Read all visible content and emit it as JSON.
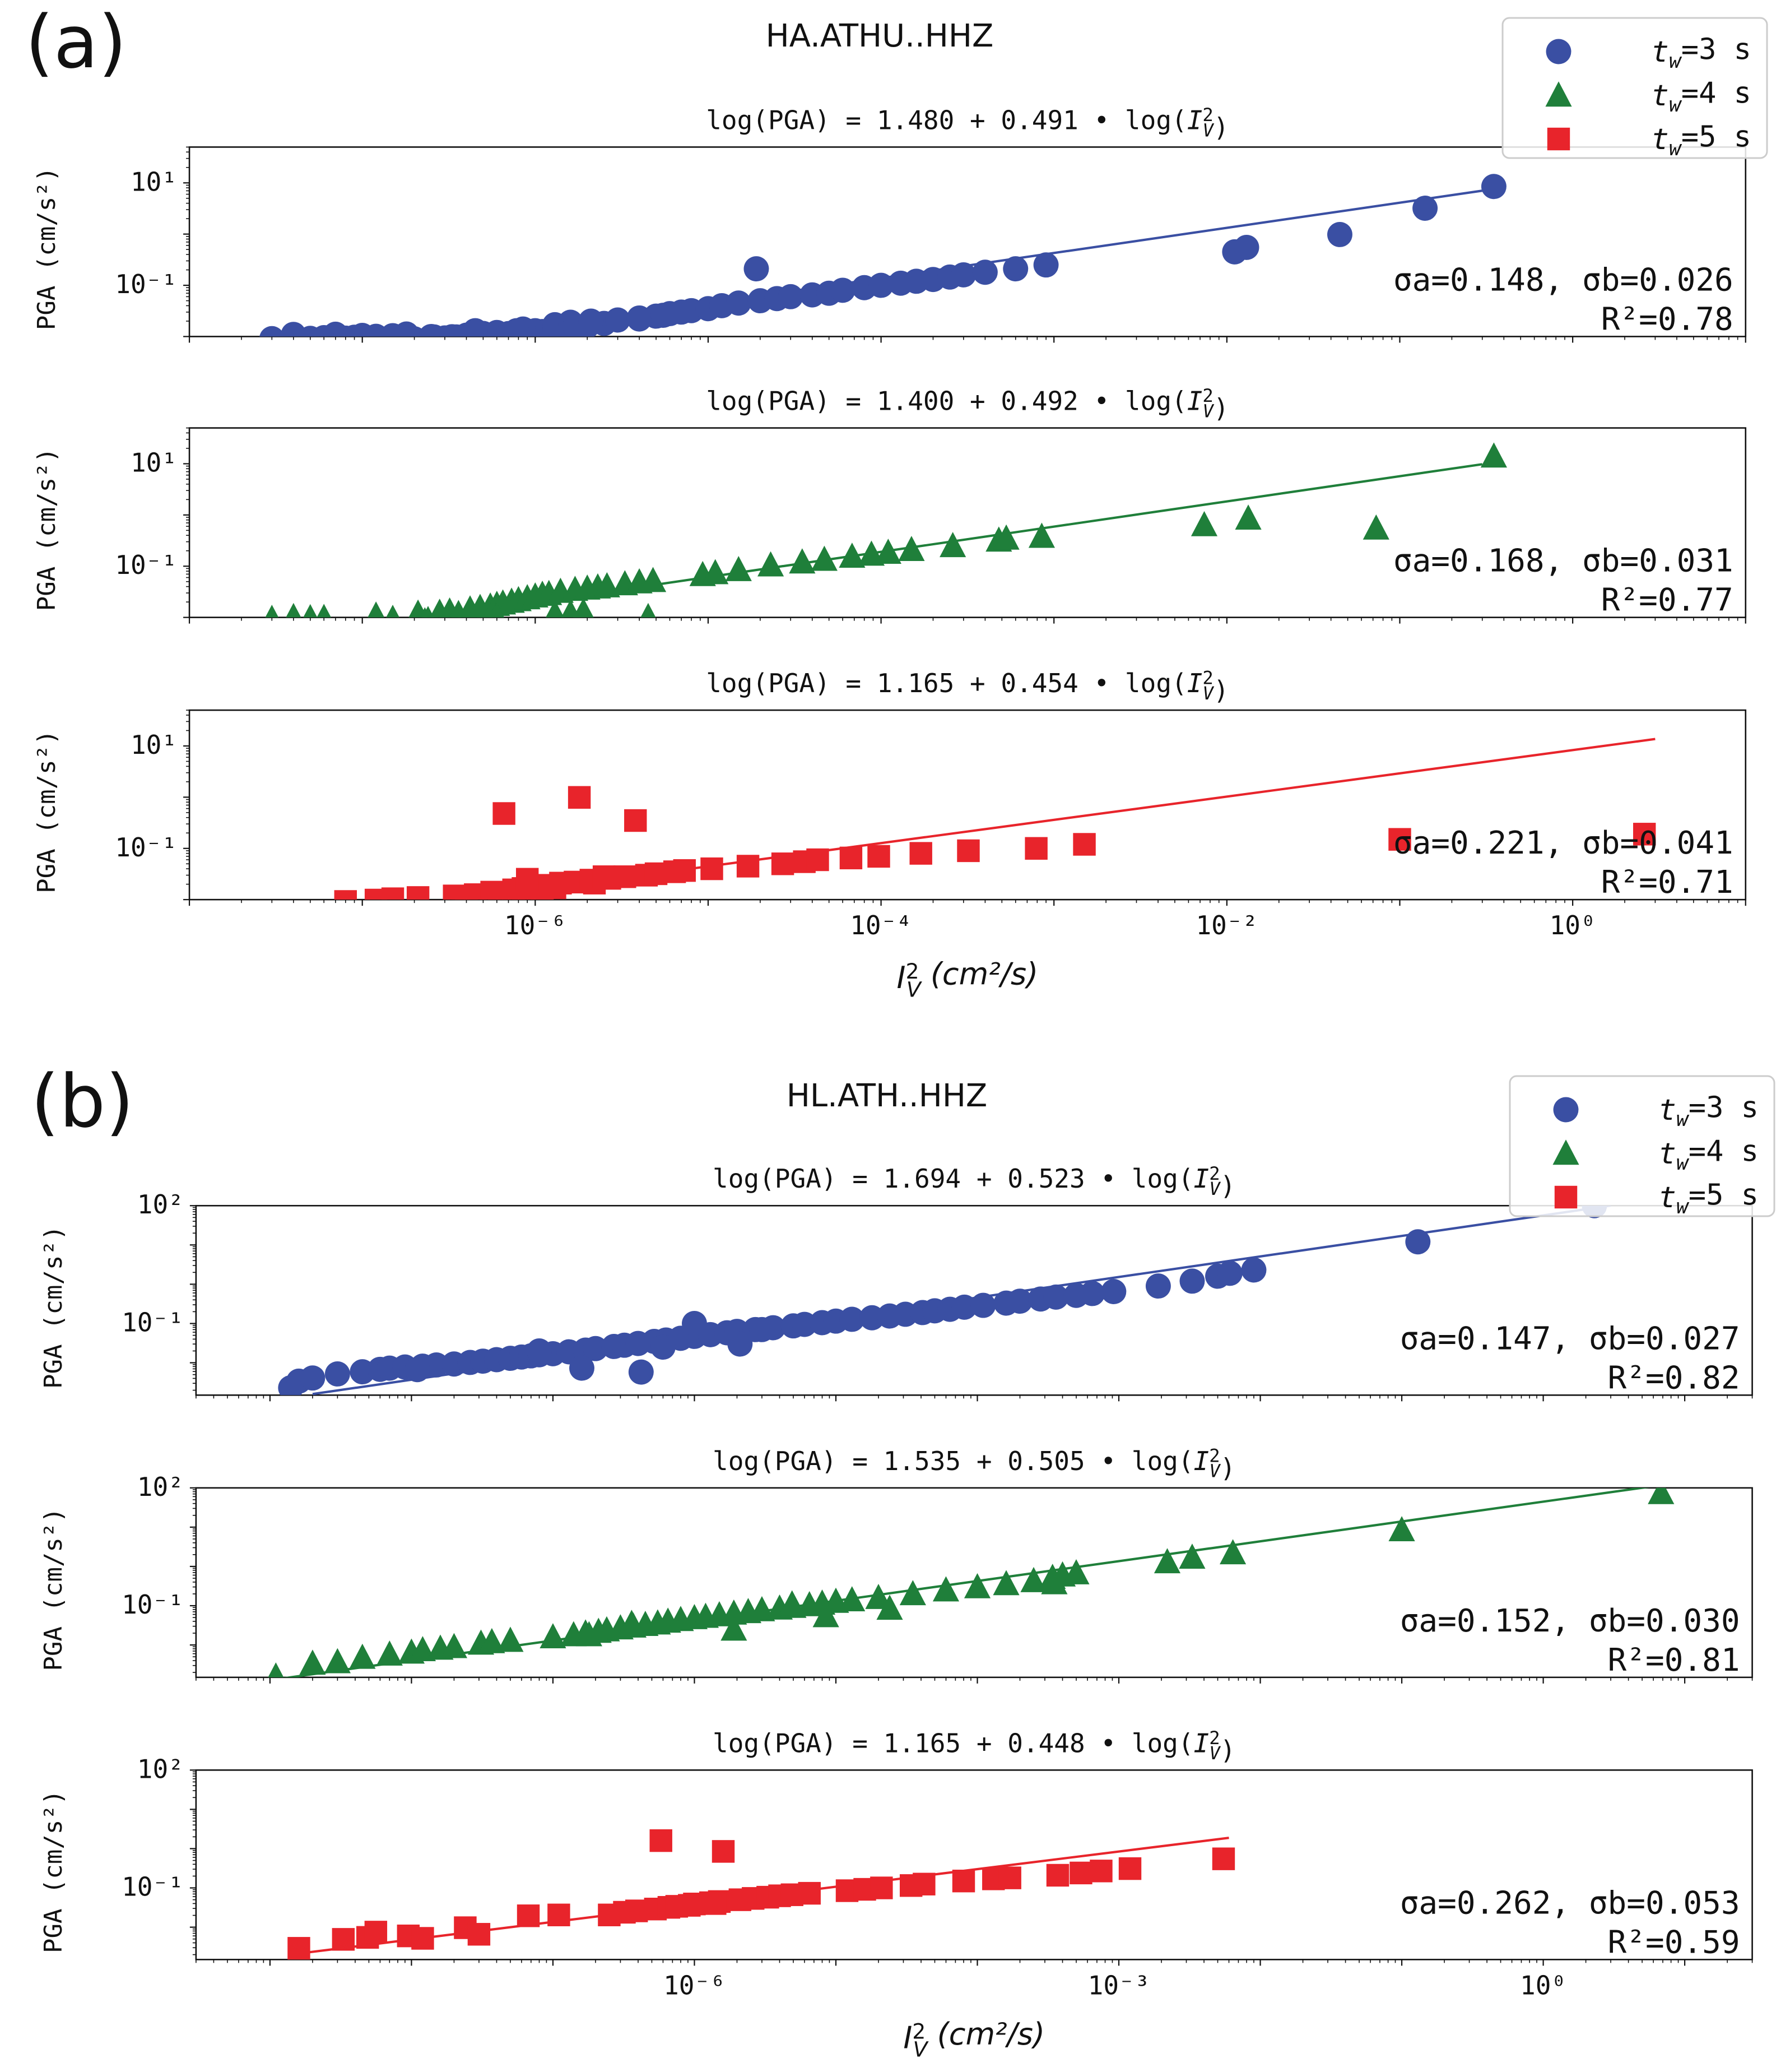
{
  "panel_labels": [
    "(a)",
    "(b)"
  ],
  "legend": [
    {
      "label": "t_w=3  s",
      "marker": "circle",
      "color": "#3a4fa3"
    },
    {
      "label": "t_w=4  s",
      "marker": "triangle",
      "color": "#1f7f3a"
    },
    {
      "label": "t_w=5  s",
      "marker": "square",
      "color": "#e8242b"
    }
  ],
  "colors": {
    "blue": "#3a4fa3",
    "green": "#1f7f3a",
    "red": "#e8242b"
  },
  "chart_data": [
    {
      "type": "scatter",
      "panel": "(a)",
      "title": "HA.ATHU..HHZ",
      "row": 1,
      "equation": "log(PGA)  =  1.480  +  0.491  •  log(I²_V)",
      "sigma": "σa=0.148,  σb=0.026",
      "r2": "R²=0.78",
      "ylabel": "PGA (cm/s²)",
      "xlabel": "",
      "xscale": "log",
      "yscale": "log",
      "xlim": [
        1e-08,
        10
      ],
      "ylim": [
        0.01,
        50
      ],
      "yticks": [
        "10¹",
        "10⁻¹"
      ],
      "xticks": [],
      "fit": {
        "a": 1.48,
        "b": 0.491,
        "x": [
          3e-08,
          0.3
        ]
      },
      "series": [
        {
          "name": "t_w=3  s",
          "marker": "circle",
          "color": "#3a4fa3",
          "x": [
            3e-08,
            4e-08,
            5e-08,
            6e-08,
            7e-08,
            8e-08,
            9e-08,
            1e-07,
            1.2e-07,
            1.5e-07,
            1.8e-07,
            2e-07,
            2.5e-07,
            3e-07,
            3.5e-07,
            4e-07,
            4e-07,
            5e-07,
            6e-07,
            6e-07,
            7e-07,
            8e-07,
            9e-07,
            1e-06,
            1.1e-06,
            1.3e-06,
            1.5e-06,
            1.8e-06,
            2e-06,
            2.5e-06,
            3e-06,
            4e-06,
            5e-06,
            6e-06,
            7e-06,
            8e-06,
            1e-05,
            1.2e-05,
            1.5e-05,
            2e-05,
            2.5e-05,
            3e-05,
            4e-05,
            5e-05,
            6e-05,
            8e-05,
            0.0001,
            0.00013,
            0.00016,
            0.0002,
            0.00025,
            0.0003,
            0.0004,
            0.0006,
            0.0009,
            0.0111,
            0.013,
            0.045,
            0.14,
            0.35,
            1.3e-06,
            4.5e-07,
            1.6e-06,
            1.9e-05,
            2.6e-07,
            1.7e-06,
            8.5e-07,
            7.8e-07,
            3.3e-07,
            2.1e-06,
            4e-06,
            5.5e-06
          ],
          "y": [
            0.0091,
            0.011,
            0.0092,
            0.0095,
            0.0111,
            0.0093,
            0.0097,
            0.0105,
            0.0101,
            0.0104,
            0.0112,
            0.009,
            0.01,
            0.0094,
            0.0098,
            0.0096,
            0.0106,
            0.0115,
            0.0108,
            0.012,
            0.0114,
            0.0118,
            0.012,
            0.013,
            0.0125,
            0.0135,
            0.014,
            0.0148,
            0.016,
            0.018,
            0.021,
            0.023,
            0.025,
            0.028,
            0.03,
            0.032,
            0.035,
            0.04,
            0.045,
            0.05,
            0.055,
            0.06,
            0.065,
            0.07,
            0.08,
            0.09,
            0.1,
            0.11,
            0.12,
            0.13,
            0.145,
            0.16,
            0.18,
            0.21,
            0.25,
            0.45,
            0.55,
            0.98,
            3.2,
            8.5,
            0.017,
            0.013,
            0.019,
            0.21,
            0.0098,
            0.016,
            0.014,
            0.013,
            0.0099,
            0.02,
            0.022,
            0.026
          ]
        }
      ]
    },
    {
      "type": "scatter",
      "panel": "(a)",
      "title": "HA.ATHU..HHZ",
      "row": 2,
      "equation": "log(PGA)  =  1.400  +  0.492  •  log(I²_V)",
      "sigma": "σa=0.168,  σb=0.031",
      "r2": "R²=0.77",
      "ylabel": "PGA (cm/s²)",
      "xlabel": "",
      "xscale": "log",
      "yscale": "log",
      "xlim": [
        1e-08,
        10
      ],
      "ylim": [
        0.01,
        50
      ],
      "yticks": [
        "10¹",
        "10⁻¹"
      ],
      "xticks": [],
      "fit": {
        "a": 1.4,
        "b": 0.492,
        "x": [
          3e-08,
          0.3
        ]
      },
      "series": [
        {
          "name": "t_w=4  s",
          "marker": "triangle",
          "color": "#1f7f3a",
          "x": [
            3e-08,
            4e-08,
            5e-08,
            6e-08,
            1.2e-07,
            1.5e-07,
            2.1e-07,
            2.3e-07,
            2.4e-07,
            2.8e-07,
            3.2e-07,
            3.6e-07,
            4.2e-07,
            4.8e-07,
            5.5e-07,
            6e-07,
            6.5e-07,
            7.3e-07,
            8e-07,
            9e-07,
            1e-06,
            1.1e-06,
            1.2e-06,
            1.4e-06,
            1.7e-06,
            2e-06,
            2.3e-06,
            2.6e-06,
            3.3e-06,
            4e-06,
            4.8e-06,
            9.3e-06,
            1.1e-05,
            1.5e-05,
            2.3e-05,
            3.5e-05,
            4.7e-05,
            6.8e-05,
            8.8e-05,
            0.00011,
            0.00015,
            0.00026,
            0.00048,
            0.00053,
            0.00085,
            0.0074,
            0.0133,
            0.073,
            0.35,
            3.5e-07,
            4.5e-06,
            1.3e-06,
            1.9e-06,
            6e-07,
            1.6e-06
          ],
          "y": [
            0.0095,
            0.0103,
            0.0098,
            0.0099,
            0.011,
            0.0095,
            0.012,
            0.0085,
            0.009,
            0.0125,
            0.0132,
            0.0118,
            0.0145,
            0.0155,
            0.0165,
            0.0178,
            0.019,
            0.0205,
            0.022,
            0.024,
            0.026,
            0.028,
            0.029,
            0.032,
            0.035,
            0.037,
            0.039,
            0.041,
            0.045,
            0.049,
            0.052,
            0.068,
            0.074,
            0.085,
            0.105,
            0.12,
            0.135,
            0.155,
            0.17,
            0.185,
            0.21,
            0.25,
            0.32,
            0.35,
            0.38,
            0.64,
            0.86,
            0.55,
            14,
            0.0081,
            0.0103,
            0.0118,
            0.0129,
            0.0102,
            0.012
          ]
        }
      ]
    },
    {
      "type": "scatter",
      "panel": "(a)",
      "title": "HA.ATHU..HHZ",
      "row": 3,
      "equation": "log(PGA)  =  1.165  +  0.454  •  log(I²_V)",
      "sigma": "σa=0.221,  σb=0.041",
      "r2": "R²=0.71",
      "ylabel": "PGA (cm/s²)",
      "xlabel": "I²_V  (cm²/s)",
      "xscale": "log",
      "yscale": "log",
      "xlim": [
        1e-08,
        10
      ],
      "ylim": [
        0.01,
        50
      ],
      "yticks": [
        "10¹",
        "10⁻¹"
      ],
      "xticks": [
        "10⁻⁶",
        "10⁻⁴",
        "10⁻²",
        "10⁰"
      ],
      "fit": {
        "a": 1.165,
        "b": 0.454,
        "x": [
          6e-08,
          3.0
        ]
      },
      "series": [
        {
          "name": "t_w=5  s",
          "marker": "square",
          "color": "#e8242b",
          "x": [
            8e-08,
            1.2e-07,
            1.5e-07,
            2.1e-07,
            3.4e-07,
            4e-07,
            4.5e-07,
            5.6e-07,
            6.2e-07,
            7.5e-07,
            8.5e-07,
            1e-06,
            1.2e-06,
            1.4e-06,
            1.7e-06,
            2.1e-06,
            2.7e-06,
            3.3e-06,
            4.4e-06,
            5e-06,
            6.4e-06,
            7.3e-06,
            1.05e-05,
            1.7e-05,
            2.7e-05,
            3.6e-05,
            4.3e-05,
            6.7e-05,
            9.7e-05,
            0.00017,
            0.00032,
            0.00079,
            0.0015,
            0.1,
            2.6,
            6.6e-07,
            1.8e-06,
            3.8e-06,
            2.2e-06,
            1.3e-06,
            1.1e-06,
            9e-07,
            2.5e-06
          ],
          "y": [
            0.0092,
            0.0098,
            0.0104,
            0.011,
            0.0118,
            0.0103,
            0.0125,
            0.014,
            0.013,
            0.0155,
            0.0165,
            0.018,
            0.019,
            0.021,
            0.022,
            0.024,
            0.026,
            0.028,
            0.03,
            0.032,
            0.035,
            0.037,
            0.04,
            0.045,
            0.05,
            0.055,
            0.06,
            0.065,
            0.07,
            0.08,
            0.09,
            0.1,
            0.12,
            0.15,
            0.19,
            0.48,
            0.99,
            0.35,
            0.021,
            0.017,
            0.015,
            0.025,
            0.028
          ]
        }
      ]
    },
    {
      "type": "scatter",
      "panel": "(b)",
      "title": "HL.ATH..HHZ",
      "row": 1,
      "equation": "log(PGA)  =  1.694  +  0.523  •  log(I²_V)",
      "sigma": "σa=0.147,  σb=0.027",
      "r2": "R²=0.82",
      "ylabel": "PGA (cm/s²)",
      "xlabel": "",
      "xscale": "log",
      "yscale": "log",
      "xlim": [
        3e-10,
        30
      ],
      "ylim": [
        0.0015,
        100
      ],
      "yticks": [
        "10²",
        "10⁻¹"
      ],
      "xticks": [],
      "fit": {
        "a": 1.694,
        "b": 0.523,
        "x": [
          2e-09,
          3.0
        ]
      },
      "series": [
        {
          "name": "t_w=3  s",
          "marker": "circle",
          "color": "#3a4fa3",
          "x": [
            1.4e-09,
            1.6e-09,
            2e-09,
            3e-09,
            4.5e-09,
            6e-09,
            7e-09,
            9e-09,
            1.2e-08,
            1.5e-08,
            2e-08,
            2.6e-08,
            3.2e-08,
            4e-08,
            5e-08,
            6e-08,
            7e-08,
            8e-08,
            1e-07,
            1.3e-07,
            1.7e-07,
            2e-07,
            2.7e-07,
            3.2e-07,
            4e-07,
            5.2e-07,
            6.3e-07,
            8e-07,
            1e-06,
            1.3e-06,
            1.7e-06,
            2e-06,
            2.7e-06,
            3.6e-06,
            5e-06,
            6e-06,
            8e-06,
            1e-05,
            1.3e-05,
            1.8e-05,
            2.4e-05,
            3.1e-05,
            4.1e-05,
            5e-05,
            6.4e-05,
            8.1e-05,
            0.00011,
            0.00016,
            0.0002,
            0.00028,
            0.00036,
            0.0005,
            0.00065,
            0.00092,
            0.0019,
            0.0033,
            0.005,
            0.0061,
            0.009,
            0.13,
            2.3,
            4.2e-07,
            1.1e-08,
            1.6e-07,
            8e-08,
            6e-07,
            2.1e-06,
            1e-06,
            3e-06
          ],
          "y": [
            0.0023,
            0.0034,
            0.0041,
            0.0052,
            0.0059,
            0.0068,
            0.0073,
            0.0078,
            0.0082,
            0.0088,
            0.0093,
            0.0102,
            0.011,
            0.012,
            0.013,
            0.014,
            0.015,
            0.016,
            0.017,
            0.019,
            0.021,
            0.023,
            0.026,
            0.028,
            0.031,
            0.035,
            0.038,
            0.042,
            0.047,
            0.052,
            0.058,
            0.063,
            0.07,
            0.078,
            0.087,
            0.095,
            0.105,
            0.115,
            0.128,
            0.14,
            0.155,
            0.172,
            0.19,
            0.21,
            0.23,
            0.26,
            0.29,
            0.33,
            0.37,
            0.42,
            0.47,
            0.52,
            0.58,
            0.65,
            0.9,
            1.2,
            1.6,
            1.9,
            2.3,
            12,
            100,
            0.0058,
            0.0067,
            0.0073,
            0.02,
            0.025,
            0.03,
            0.1,
            0.07
          ]
        }
      ]
    },
    {
      "type": "scatter",
      "panel": "(b)",
      "title": "HL.ATH..HHZ",
      "row": 2,
      "equation": "log(PGA)  =  1.535  +  0.505  •  log(I²_V)",
      "sigma": "σa=0.152,  σb=0.030",
      "r2": "R²=0.81",
      "ylabel": "PGA (cm/s²)",
      "xlabel": "",
      "xscale": "log",
      "yscale": "log",
      "xlim": [
        3e-10,
        30
      ],
      "ylim": [
        0.0015,
        100
      ],
      "yticks": [
        "10²",
        "10⁻¹"
      ],
      "xticks": [],
      "fit": {
        "a": 1.535,
        "b": 0.505,
        "x": [
          1.1e-09,
          7.0
        ]
      },
      "series": [
        {
          "name": "t_w=4  s",
          "marker": "triangle",
          "color": "#1f7f3a",
          "x": [
            1.1e-09,
            2e-09,
            3e-09,
            4.5e-09,
            7e-09,
            1e-08,
            1.2e-08,
            1.6e-08,
            2e-08,
            3.1e-08,
            3.7e-08,
            5e-08,
            1e-07,
            1.4e-07,
            1.7e-07,
            2.1e-07,
            2.4e-07,
            3e-07,
            3.7e-07,
            4.5e-07,
            5.5e-07,
            6.5e-07,
            8e-07,
            1e-06,
            1.2e-06,
            1.5e-06,
            1.9e-06,
            2.4e-06,
            3e-06,
            4e-06,
            5e-06,
            6.5e-06,
            8e-06,
            1e-05,
            1.3e-05,
            2e-05,
            3.5e-05,
            6e-05,
            0.0001,
            0.00016,
            0.00025,
            0.00034,
            0.0004,
            0.0005,
            0.0022,
            0.0033,
            0.0064,
            0.1,
            6.8,
            3.6e-07,
            4.9e-06,
            1.8e-07,
            1.9e-06,
            8.5e-06,
            2.4e-05,
            0.00035
          ],
          "y": [
            0.0016,
            0.0034,
            0.0037,
            0.0048,
            0.0058,
            0.0065,
            0.0075,
            0.0082,
            0.009,
            0.011,
            0.012,
            0.013,
            0.016,
            0.018,
            0.02,
            0.022,
            0.024,
            0.027,
            0.03,
            0.033,
            0.036,
            0.04,
            0.044,
            0.049,
            0.053,
            0.058,
            0.064,
            0.07,
            0.078,
            0.086,
            0.095,
            0.105,
            0.115,
            0.128,
            0.14,
            0.16,
            0.2,
            0.25,
            0.3,
            0.36,
            0.43,
            0.52,
            0.6,
            0.68,
            1.3,
            1.7,
            2.2,
            8.5,
            75,
            0.035,
            0.11,
            0.018,
            0.025,
            0.055,
            0.085,
            0.38
          ]
        }
      ]
    },
    {
      "type": "scatter",
      "panel": "(b)",
      "title": "HL.ATH..HHZ",
      "row": 3,
      "equation": "log(PGA)  =  1.165  +  0.448  •  log(I²_V)",
      "sigma": "σa=0.262,  σb=0.053",
      "r2": "R²=0.59",
      "ylabel": "PGA (cm/s²)",
      "xlabel": "I²_V  (cm²/s)",
      "xscale": "log",
      "yscale": "log",
      "xlim": [
        3e-10,
        30
      ],
      "ylim": [
        0.0015,
        100
      ],
      "yticks": [
        "10²",
        "10⁻¹"
      ],
      "xticks": [
        "10⁻⁶",
        "10⁻³",
        "10⁰"
      ],
      "fit": {
        "a": 1.165,
        "b": 0.448,
        "x": [
          1.6e-09,
          0.006
        ]
      },
      "series": [
        {
          "name": "t_w=5  s",
          "marker": "square",
          "color": "#e8242b",
          "x": [
            1.6e-09,
            3.3e-09,
            4.9e-09,
            5.6e-09,
            9.5e-09,
            1.2e-08,
            2.4e-08,
            3e-08,
            6.7e-08,
            2.5e-07,
            3.2e-07,
            3.9e-07,
            5.3e-07,
            6.6e-07,
            7.5e-07,
            9.2e-07,
            1e-06,
            1.3e-06,
            1.5e-06,
            2.1e-06,
            2.6e-06,
            3.3e-06,
            4e-06,
            4.9e-06,
            6.5e-06,
            1.2e-05,
            1.6e-05,
            2.1e-05,
            3.4e-05,
            4.2e-05,
            8e-05,
            0.00013,
            0.00017,
            0.00037,
            0.00054,
            0.00075,
            0.0012,
            0.0055,
            1.6e-06,
            5.8e-07,
            1.1e-07,
            1.4e-06
          ],
          "y": [
            0.0029,
            0.0049,
            0.0055,
            0.0075,
            0.006,
            0.0052,
            0.0097,
            0.0066,
            0.0195,
            0.0205,
            0.024,
            0.026,
            0.029,
            0.032,
            0.034,
            0.036,
            0.039,
            0.042,
            0.045,
            0.05,
            0.054,
            0.058,
            0.063,
            0.067,
            0.073,
            0.085,
            0.092,
            0.1,
            0.115,
            0.125,
            0.15,
            0.17,
            0.18,
            0.21,
            0.24,
            0.27,
            0.31,
            0.55,
            0.85,
            1.6,
            0.0205,
            0.04
          ]
        }
      ]
    }
  ]
}
